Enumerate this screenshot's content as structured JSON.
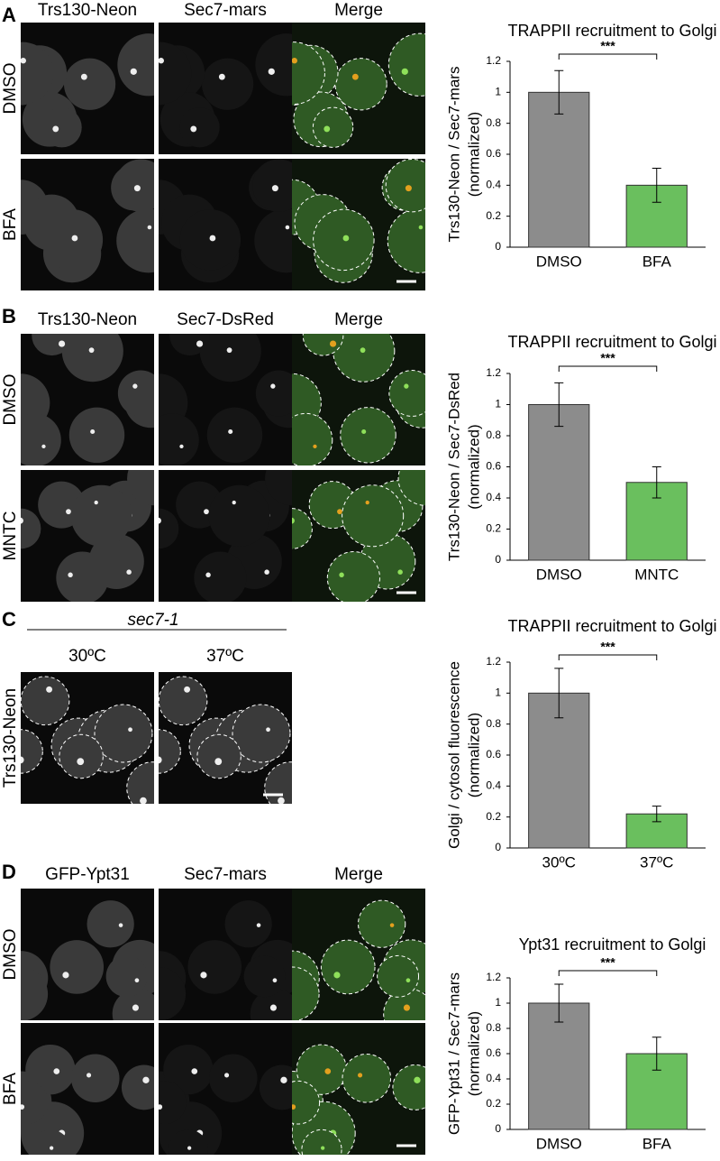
{
  "image_panels": [
    {
      "letter": "A",
      "columns": [
        "Trs130-Neon",
        "Sec7-mars",
        "Merge"
      ],
      "rows": [
        "DMSO",
        "BFA"
      ]
    },
    {
      "letter": "B",
      "columns": [
        "Trs130-Neon",
        "Sec7-DsRed",
        "Merge"
      ],
      "rows": [
        "DMSO",
        "MNTC"
      ]
    },
    {
      "letter": "C",
      "strain": "sec7-1",
      "columns": [
        "30ºC",
        "37ºC"
      ],
      "rows": [
        "Trs130-Neon"
      ]
    },
    {
      "letter": "D",
      "columns": [
        "GFP-Ypt31",
        "Sec7-mars",
        "Merge"
      ],
      "rows": [
        "DMSO",
        "BFA"
      ]
    }
  ],
  "chart_data": [
    {
      "type": "bar",
      "title": "TRAPPII recruitment to Golgi",
      "ylabel": [
        "Trs130-Neon / Sec7-mars",
        "(normalized)"
      ],
      "categories": [
        "DMSO",
        "BFA"
      ],
      "values": [
        1,
        0.4
      ],
      "errors": [
        0.14,
        0.11
      ],
      "colors": [
        "#8c8c8c",
        "#6abf5e"
      ],
      "ylim": [
        0,
        1.2
      ],
      "yticks": [
        0,
        0.2,
        0.4,
        0.6,
        0.8,
        1,
        1.2
      ],
      "significance": "***"
    },
    {
      "type": "bar",
      "title": "TRAPPII recruitment to Golgi",
      "ylabel": [
        "Trs130-Neon / Sec7-DsRed",
        "(normalized)"
      ],
      "categories": [
        "DMSO",
        "MNTC"
      ],
      "values": [
        1,
        0.5
      ],
      "errors": [
        0.14,
        0.1
      ],
      "colors": [
        "#8c8c8c",
        "#6abf5e"
      ],
      "ylim": [
        0,
        1.2
      ],
      "yticks": [
        0,
        0.2,
        0.4,
        0.6,
        0.8,
        1,
        1.2
      ],
      "significance": "***"
    },
    {
      "type": "bar",
      "title": "TRAPPII recruitment to Golgi",
      "ylabel": [
        "Golgi / cytosol fluorescence",
        "(normalized)"
      ],
      "categories": [
        "30ºC",
        "37ºC"
      ],
      "values": [
        1,
        0.22
      ],
      "errors": [
        0.16,
        0.05
      ],
      "colors": [
        "#8c8c8c",
        "#6abf5e"
      ],
      "ylim": [
        0,
        1.2
      ],
      "yticks": [
        0,
        0.2,
        0.4,
        0.6,
        0.8,
        1,
        1.2
      ],
      "significance": "***"
    },
    {
      "type": "bar",
      "title": "Ypt31 recruitment to Golgi",
      "ylabel": [
        "GFP-Ypt31 / Sec7-mars",
        "(normalized)"
      ],
      "categories": [
        "DMSO",
        "BFA"
      ],
      "values": [
        1,
        0.6
      ],
      "errors": [
        0.15,
        0.13
      ],
      "colors": [
        "#8c8c8c",
        "#6abf5e"
      ],
      "ylim": [
        0,
        1.2
      ],
      "yticks": [
        0,
        0.2,
        0.4,
        0.6,
        0.8,
        1,
        1.2
      ],
      "significance": "***"
    }
  ]
}
